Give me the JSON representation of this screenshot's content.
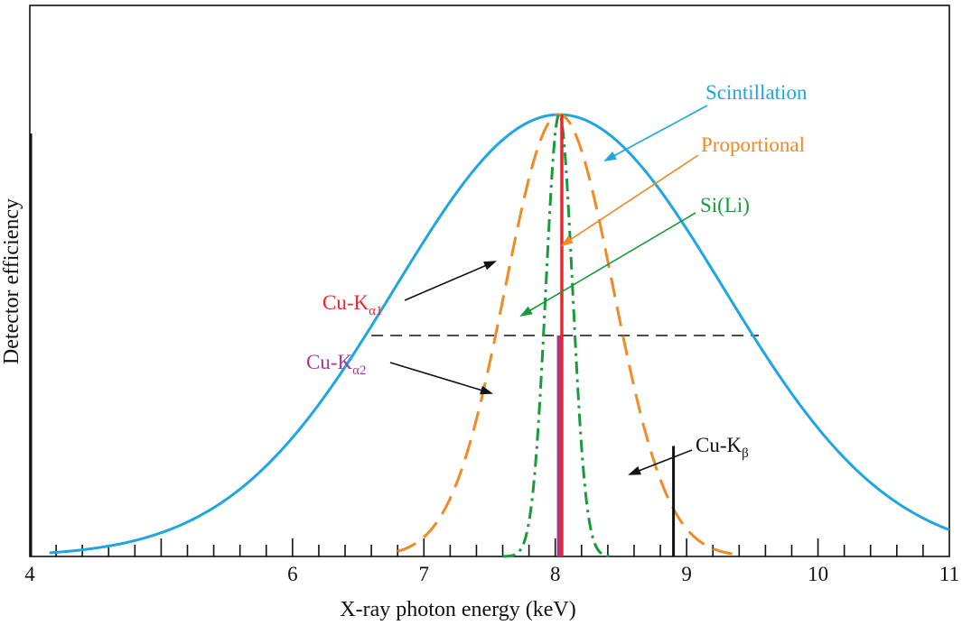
{
  "chart_data": {
    "type": "line",
    "title": "",
    "xlabel": "X-ray photon energy (keV)",
    "ylabel": "Detector efficiency",
    "xlim": [
      4,
      11
    ],
    "ylim": [
      0,
      1
    ],
    "x_ticks": [
      4,
      5,
      6,
      7,
      8,
      9,
      10,
      11
    ],
    "x_tick_labels": [
      "4",
      "",
      "6",
      "7",
      "8",
      "9",
      "10",
      "11"
    ],
    "minor_tick_step": 0.2,
    "grid": false,
    "legend": "annotations",
    "half_max_level": 0.5,
    "half_max_range": [
      6.6,
      9.55
    ],
    "series": [
      {
        "name": "Scintillation",
        "style": "solid",
        "color": "#1ea6e0",
        "peak_x": 8.03,
        "peak_y": 1.0,
        "fwhm": 2.95,
        "x_range": [
          4.15,
          11.0
        ]
      },
      {
        "name": "Proportional",
        "style": "dashed",
        "color": "#f08a24",
        "peak_x": 8.03,
        "peak_y": 1.0,
        "fwhm": 0.97,
        "x_range": [
          6.8,
          9.35
        ]
      },
      {
        "name": "Si(Li)",
        "style": "dashdot",
        "color": "#1a9a3c",
        "peak_x": 8.03,
        "peak_y": 1.0,
        "fwhm": 0.24,
        "x_range": [
          7.6,
          8.45
        ]
      }
    ],
    "lines": [
      {
        "name": "Cu-Kα1",
        "base": "Cu-K",
        "sub": "α1",
        "x": 8.05,
        "height": 1.0,
        "color": "#e8262e"
      },
      {
        "name": "Cu-Kα2",
        "base": "Cu-K",
        "sub": "α2",
        "x": 8.03,
        "height": 0.5,
        "color": "#a2398f"
      },
      {
        "name": "Cu-Kβ",
        "base": "Cu-K",
        "sub": "β",
        "x": 8.9,
        "height": 0.25,
        "color": "#111111"
      }
    ],
    "annotations": {
      "scintillation": "Scintillation",
      "proportional": "Proportional",
      "sili": "Si(Li)"
    }
  },
  "colors": {
    "axis": "#111111",
    "halfmax": "#111111"
  }
}
